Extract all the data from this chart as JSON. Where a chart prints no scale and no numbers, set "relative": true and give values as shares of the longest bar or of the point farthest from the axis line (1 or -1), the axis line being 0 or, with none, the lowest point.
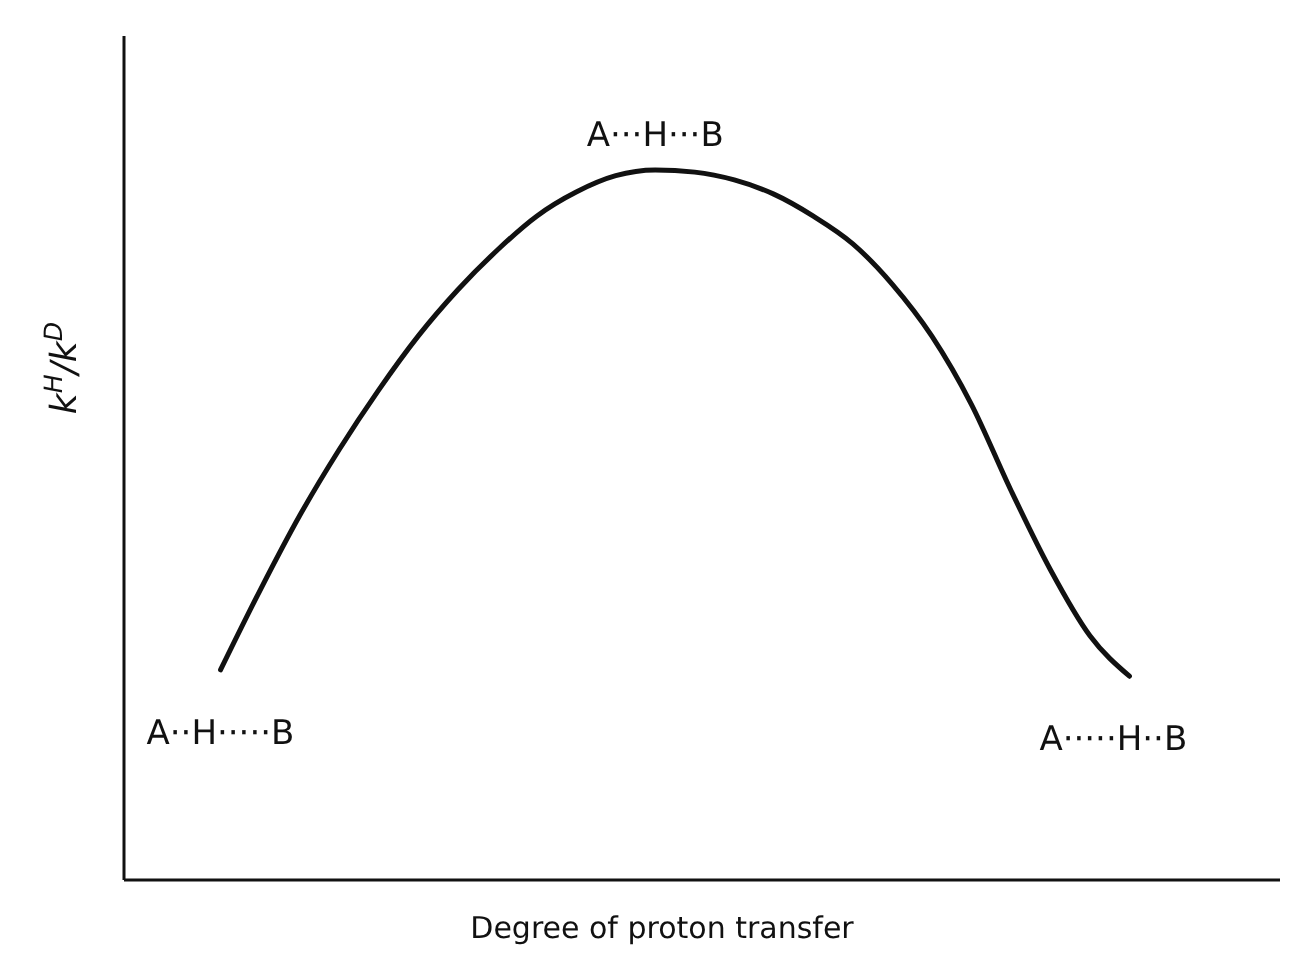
{
  "chart_data": {
    "type": "line",
    "relative": true,
    "xlabel": "Degree of proton transfer",
    "ylabel": "k$^{H}$/k$^{D}$",
    "categories": [
      null,
      null,
      null,
      null,
      null,
      null,
      null,
      null,
      null,
      null,
      null,
      null,
      null,
      null,
      null,
      null,
      null,
      null,
      null,
      null,
      null,
      null,
      null,
      null,
      null,
      null,
      null,
      null,
      null,
      null
    ],
    "series": [
      {
        "color": "#111111",
        "values": [
          null,
          null,
          null,
          0.296,
          0.408,
          0.513,
          0.606,
          0.69,
          0.766,
          0.831,
          0.887,
          0.935,
          0.969,
          0.992,
          1,
          0.997,
          0.986,
          0.966,
          0.935,
          0.896,
          0.839,
          0.766,
          0.67,
          0.549,
          0.437,
          0.344,
          0.287,
          null,
          null,
          null
        ]
      }
    ],
    "annotations": [
      "A··H·····B",
      "A···H···B",
      "A·····H··B"
    ],
    "marker": "none",
    "line_style": "solid",
    "grid": false
  }
}
